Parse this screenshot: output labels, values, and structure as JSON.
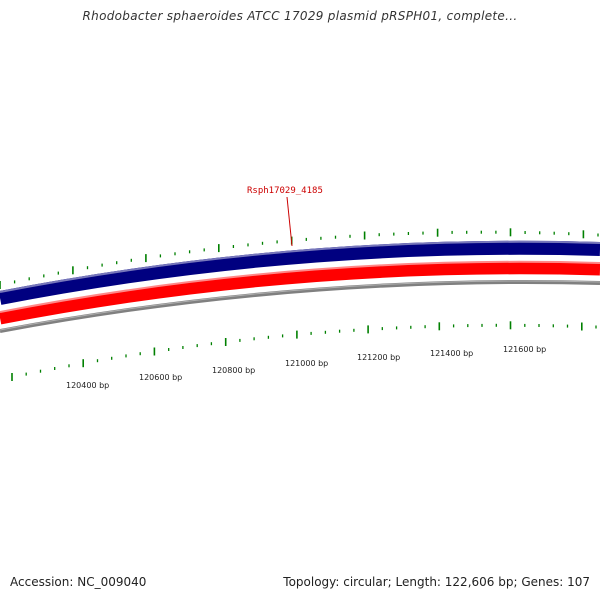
{
  "title": "Rhodobacter sphaeroides ATCC 17029 plasmid pRSPH01, complete...",
  "footer": {
    "accession": "Accession: NC_009040",
    "summary": "Topology: circular; Length: 122,606 bp; Genes: 107"
  },
  "colors": {
    "forward_strand": "#000080",
    "reverse_strand": "#ff0000",
    "backbone": "#808080",
    "ticks": "#008000",
    "gene_label": "#cc0000"
  },
  "gene_labels": [
    {
      "text": "Rsph17029_4185"
    }
  ],
  "tick_labels": [
    {
      "text": "120400 bp"
    },
    {
      "text": "120600 bp"
    },
    {
      "text": "120800 bp"
    },
    {
      "text": "121000 bp"
    },
    {
      "text": "121200 bp"
    },
    {
      "text": "121400 bp"
    },
    {
      "text": "121600 bp"
    }
  ]
}
